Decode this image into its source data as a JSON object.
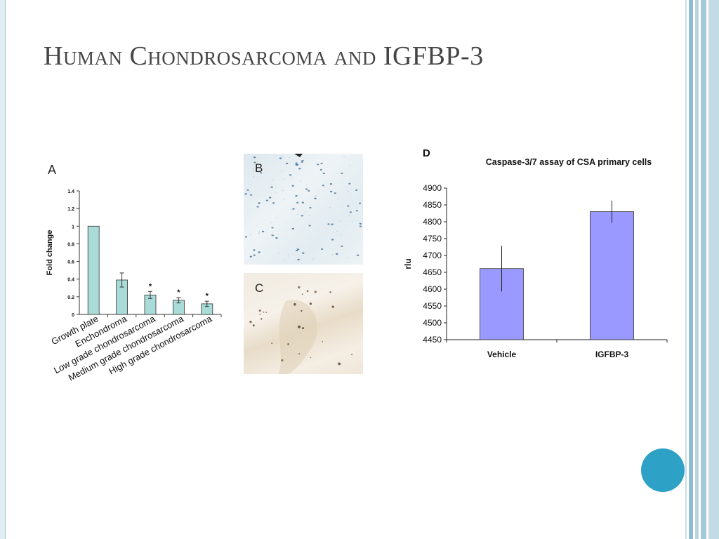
{
  "slide": {
    "title": "Human Chondrosarcoma and IGFBP-3",
    "accent_color": "#2ea1c6"
  },
  "panels": {
    "a_label": "A",
    "b_label": "B",
    "c_label": "C",
    "d_label": "D"
  },
  "chart_data": [
    {
      "type": "bar",
      "panel": "A",
      "title": "",
      "xlabel": "",
      "ylabel": "Fold change",
      "categories": [
        "Growth plate",
        "Enchondroma",
        "Low grade chondrosarcoma",
        "Medium grade chondrosarcoma",
        "High grade chondrosarcoma"
      ],
      "values": [
        1.0,
        0.39,
        0.22,
        0.16,
        0.12
      ],
      "errors": [
        0,
        0.08,
        0.04,
        0.03,
        0.03
      ],
      "annotations": [
        "",
        "",
        "*",
        "*",
        "*"
      ],
      "ylim": [
        0,
        1.4
      ],
      "yticks": [
        "0",
        "0.2",
        "0.4",
        "0.6",
        "0.8",
        "1",
        "1.2",
        "1.4"
      ],
      "bar_color": "#a9dcd8",
      "grid": false
    },
    {
      "type": "bar",
      "panel": "D",
      "title": "Caspase-3/7 assay of CSA primary cells",
      "xlabel": "",
      "ylabel": "rlu",
      "categories": [
        "Vehicle",
        "IGFBP-3"
      ],
      "values": [
        4661,
        4830
      ],
      "errors": [
        68,
        33
      ],
      "ylim": [
        4450,
        4900
      ],
      "yticks": [
        "4450",
        "4500",
        "4550",
        "4600",
        "4650",
        "4700",
        "4750",
        "4800",
        "4850",
        "4900"
      ],
      "bar_color": "#9999ff",
      "grid": false
    }
  ]
}
